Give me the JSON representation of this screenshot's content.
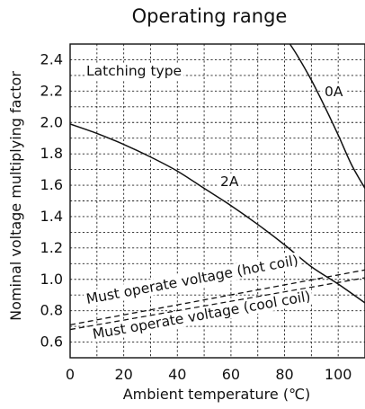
{
  "chart_data": {
    "type": "line",
    "title": "Operating range",
    "xlabel": "Ambient temperature (℃)",
    "ylabel": "Nominal voltage multiplying factor",
    "xlim": [
      0,
      110
    ],
    "ylim": [
      0.5,
      2.5
    ],
    "xticks": [
      0,
      20,
      40,
      60,
      80,
      100
    ],
    "yticks": [
      0.6,
      0.8,
      1.0,
      1.2,
      1.4,
      1.6,
      1.8,
      2.0,
      2.2,
      2.4
    ],
    "xtick_labels": [
      "0",
      "20",
      "40",
      "60",
      "80",
      "100"
    ],
    "ytick_labels": [
      "0.6",
      "0.8",
      "1.0",
      "1.2",
      "1.4",
      "1.6",
      "1.8",
      "2.0",
      "2.2",
      "2.4"
    ],
    "grid": true,
    "annotation": "Latching type",
    "series": [
      {
        "name": "0A",
        "style": "solid",
        "x": [
          82,
          85,
          90,
          95,
          100,
          105,
          110
        ],
        "y": [
          2.5,
          2.42,
          2.27,
          2.1,
          1.92,
          1.73,
          1.58
        ]
      },
      {
        "name": "2A",
        "style": "solid",
        "x": [
          0,
          10,
          20,
          30,
          40,
          50,
          60,
          70,
          80,
          90,
          100,
          110
        ],
        "y": [
          1.99,
          1.93,
          1.86,
          1.78,
          1.69,
          1.58,
          1.47,
          1.35,
          1.22,
          1.08,
          0.97,
          0.85
        ]
      },
      {
        "name": "Must operate voltage (hot coil)",
        "style": "dashed",
        "x": [
          0,
          110
        ],
        "y": [
          0.71,
          1.06
        ]
      },
      {
        "name": "Must operate voltage (cool coil)",
        "style": "dashed",
        "x": [
          0,
          110
        ],
        "y": [
          0.68,
          1.01
        ]
      }
    ]
  }
}
